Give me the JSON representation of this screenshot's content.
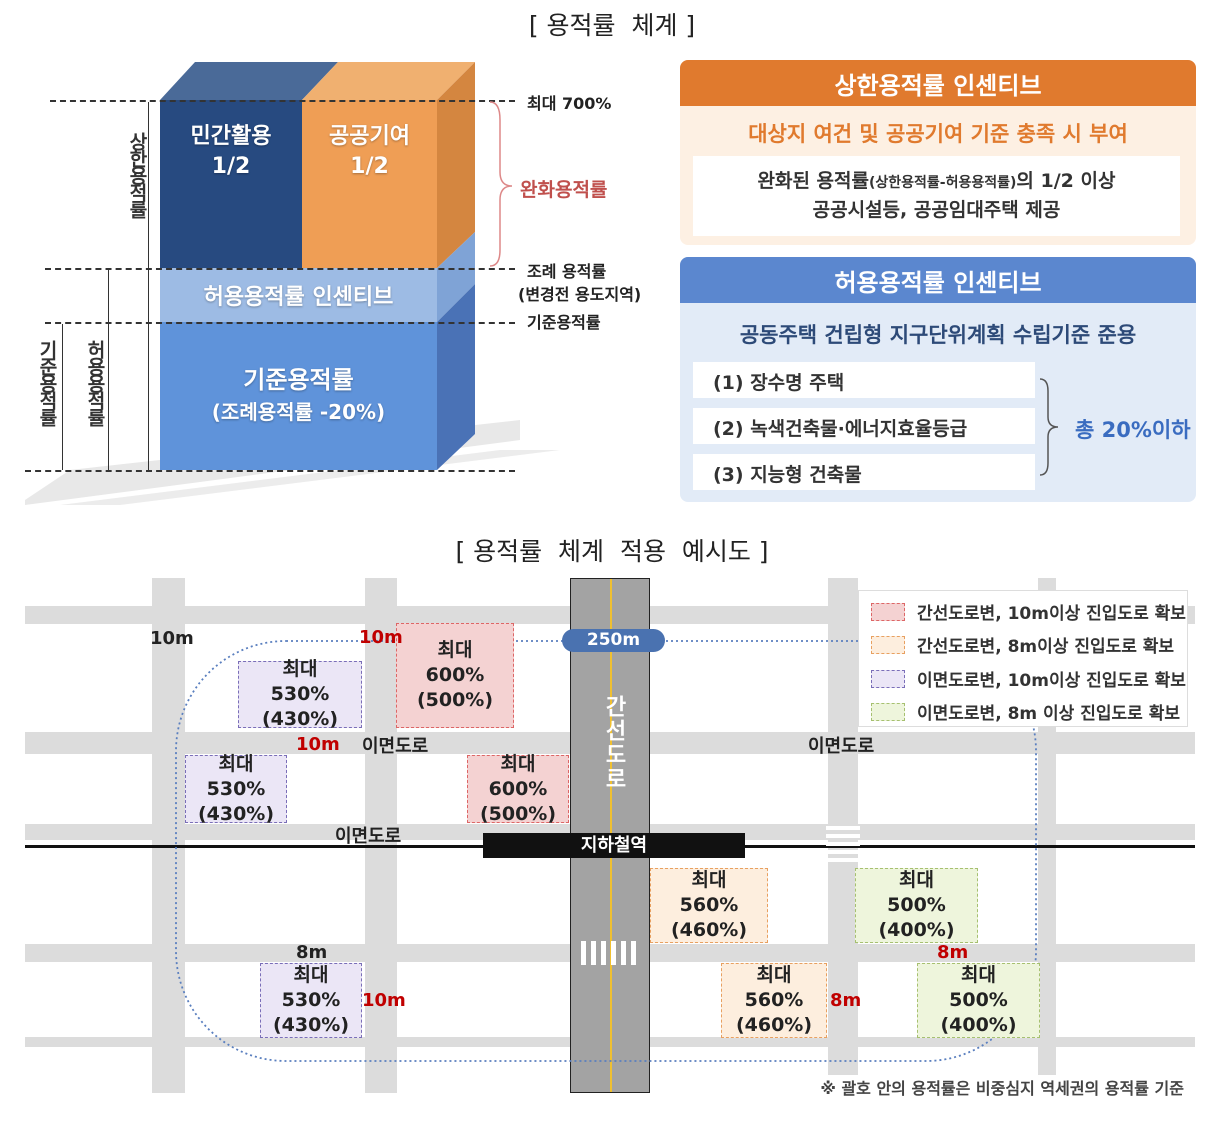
{
  "top_title": "[ 용적률  체계 ]",
  "block": {
    "private": "민간활용",
    "private_share": "1/2",
    "public": "공공기여",
    "public_share": "1/2",
    "incentive_band": "허용용적률 인센티브",
    "base": "기준용적률",
    "base_note": "(조례용적률 -20%)",
    "max": "최대 700%",
    "relaxed": "완화용적률",
    "ordinance": "조례 용적률",
    "ordinance_note": "(변경전 용도지역)",
    "base_line": "기준용적률",
    "v_upper": "상한용적률",
    "v_allowed": "허용용적률",
    "v_base": "기준용적률"
  },
  "upper_panel": {
    "title": "상한용적률 인센티브",
    "subtitle": "대상지 여건 및 공공기여 기준 충족 시 부여",
    "line1_a": "완화된 용적률",
    "line1_b": "(상한용적률-허용용적률)",
    "line1_c": "의 1/2 이상",
    "line2": "공공시설등, 공공임대주택 제공",
    "color": "#e07a2e"
  },
  "allowed_panel": {
    "title": "허용용적률 인센티브",
    "subtitle": "공동주택 건립형 지구단위계획 수립기준 준용",
    "items": [
      "(1) 장수명 주택",
      "(2) 녹색건축물·에너지효율등급",
      "(3) 지능형 건축물"
    ],
    "total": "총 20%이하",
    "color": "#5b87cf"
  },
  "map_title": "[ 용적률  체계  적용  예시도 ]",
  "map": {
    "radius": "250m",
    "arterial": "간선도로",
    "station": "지하철역",
    "side_road": "이면도로",
    "w10": "10m",
    "w8": "8m",
    "blocks": [
      {
        "l1": "최대",
        "l2": "530%",
        "l3": "(430%)"
      },
      {
        "l1": "최대",
        "l2": "600%",
        "l3": "(500%)"
      },
      {
        "l1": "최대",
        "l2": "530%",
        "l3": "(430%)"
      },
      {
        "l1": "최대 600%",
        "l2": "(500%)"
      },
      {
        "l1": "최대",
        "l2": "560%",
        "l3": "(460%)"
      },
      {
        "l1": "최대",
        "l2": "500%",
        "l3": "(400%)"
      },
      {
        "l1": "최대",
        "l2": "530%",
        "l3": "(430%)"
      },
      {
        "l1": "최대",
        "l2": "560%",
        "l3": "(460%)"
      },
      {
        "l1": "최대",
        "l2": "500%",
        "l3": "(400%)"
      }
    ],
    "legend": [
      {
        "label": "간선도로변, 10m이상 진입도로 확보",
        "color": "#f4d2d2"
      },
      {
        "label": "간선도로변, 8m이상 진입도로 확보",
        "color": "#fdeede"
      },
      {
        "label": "이면도로변, 10m이상 진입도로 확보",
        "color": "#ebe6f6"
      },
      {
        "label": "이면도로변, 8m 이상 진입도로 확보",
        "color": "#eef5dc"
      }
    ],
    "footnote": "※ 괄호 안의 용적률은 비중심지 역세권의 용적률 기준"
  }
}
